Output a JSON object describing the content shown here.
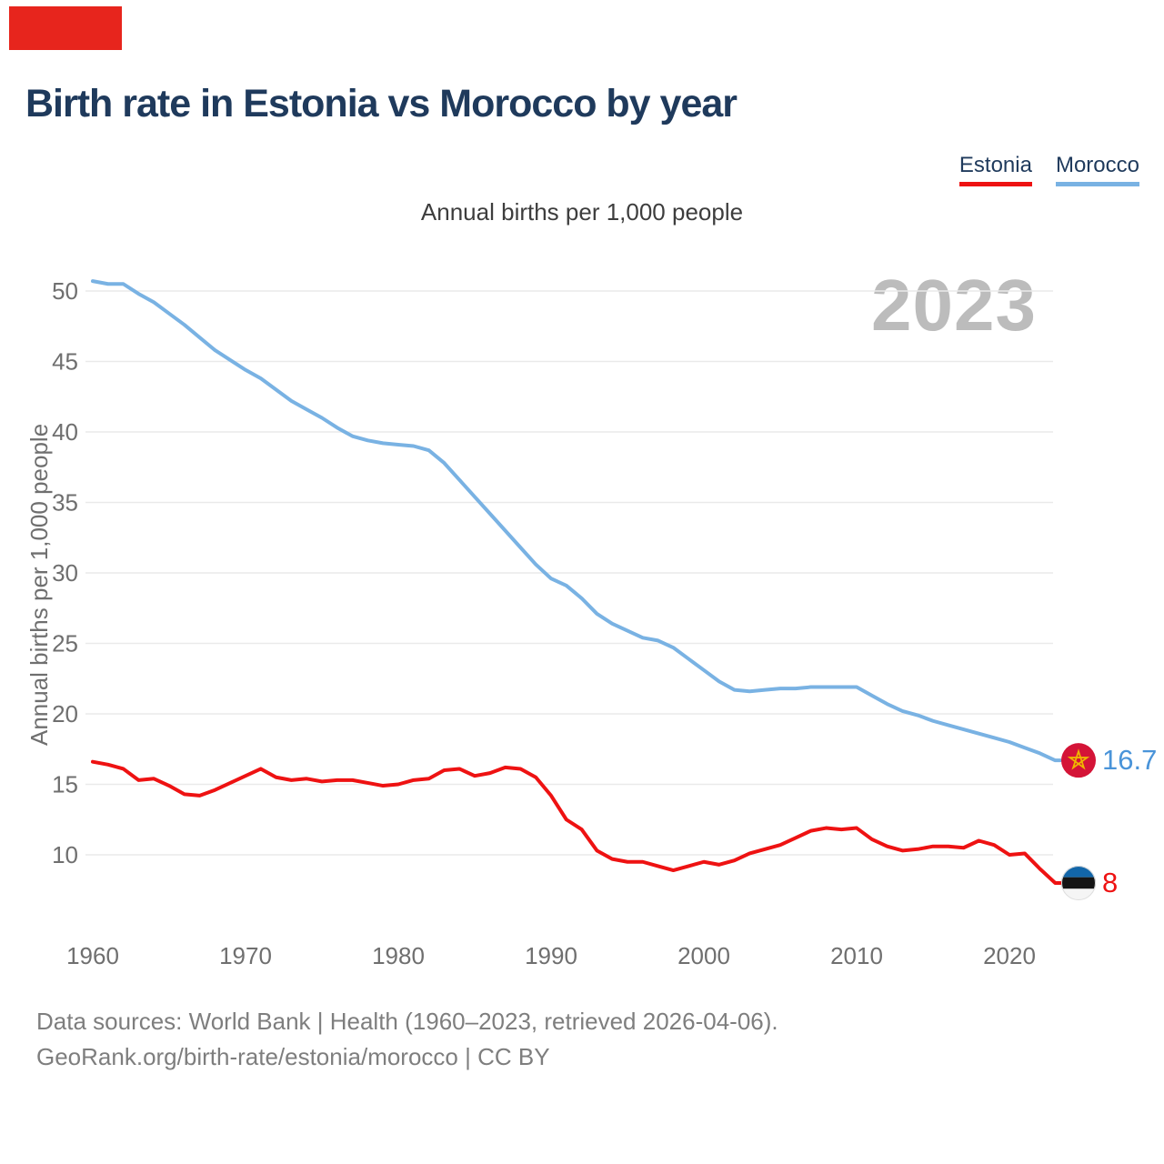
{
  "page": {
    "background_color": "#ffffff"
  },
  "decoration": {
    "red_marker_color": "#e7251d"
  },
  "header": {
    "title": "Birth rate in Estonia vs Morocco by year"
  },
  "legend": {
    "items": [
      {
        "label": "Estonia",
        "underline_color": "#ee1212"
      },
      {
        "label": "Morocco",
        "underline_color": "#79b2e3"
      }
    ]
  },
  "chart_data": {
    "type": "line",
    "title": "Birth rate in Estonia vs Morocco by year",
    "subtitle": "Annual births per 1,000 people",
    "ylabel": "Annual births per 1,000 people",
    "xlabel": "",
    "watermark": "2023",
    "grid": true,
    "legend_position": "top-right",
    "ylim": [
      6.5,
      52
    ],
    "yticks": [
      10,
      15,
      20,
      25,
      30,
      35,
      40,
      45,
      50
    ],
    "xticks": [
      1960,
      1970,
      1980,
      1990,
      2000,
      2010,
      2020
    ],
    "x": [
      1960,
      1961,
      1962,
      1963,
      1964,
      1965,
      1966,
      1967,
      1968,
      1969,
      1970,
      1971,
      1972,
      1973,
      1974,
      1975,
      1976,
      1977,
      1978,
      1979,
      1980,
      1981,
      1982,
      1983,
      1984,
      1985,
      1986,
      1987,
      1988,
      1989,
      1990,
      1991,
      1992,
      1993,
      1994,
      1995,
      1996,
      1997,
      1998,
      1999,
      2000,
      2001,
      2002,
      2003,
      2004,
      2005,
      2006,
      2007,
      2008,
      2009,
      2010,
      2011,
      2012,
      2013,
      2014,
      2015,
      2016,
      2017,
      2018,
      2019,
      2020,
      2021,
      2022,
      2023
    ],
    "series": [
      {
        "name": "Morocco",
        "color": "#79b2e3",
        "end_label": "16.7",
        "end_label_color": "#4a94d9",
        "flag": "morocco",
        "flag_colors": {
          "circle": "#d41437",
          "star": "#efb700"
        },
        "values": [
          50.7,
          50.5,
          50.5,
          49.8,
          49.2,
          48.4,
          47.6,
          46.7,
          45.8,
          45.1,
          44.4,
          43.8,
          43.0,
          42.2,
          41.6,
          41.0,
          40.3,
          39.7,
          39.4,
          39.2,
          39.1,
          39.0,
          38.7,
          37.8,
          36.6,
          35.4,
          34.2,
          33.0,
          31.8,
          30.6,
          29.6,
          29.1,
          28.2,
          27.1,
          26.4,
          25.9,
          25.4,
          25.2,
          24.7,
          23.9,
          23.1,
          22.3,
          21.7,
          21.6,
          21.7,
          21.8,
          21.8,
          21.9,
          21.9,
          21.9,
          21.9,
          21.3,
          20.7,
          20.2,
          19.9,
          19.5,
          19.2,
          18.9,
          18.6,
          18.3,
          18.0,
          17.6,
          17.2,
          16.7
        ]
      },
      {
        "name": "Estonia",
        "color": "#ee1212",
        "end_label": "8",
        "end_label_color": "#ee1212",
        "flag": "estonia",
        "flag_colors": {
          "blue": "#1266a9",
          "black": "#151515",
          "white": "#f5f5f5"
        },
        "values": [
          16.6,
          16.4,
          16.1,
          15.3,
          15.4,
          14.9,
          14.3,
          14.2,
          14.6,
          15.1,
          15.6,
          16.1,
          15.5,
          15.3,
          15.4,
          15.2,
          15.3,
          15.3,
          15.1,
          14.9,
          15.0,
          15.3,
          15.4,
          16.0,
          16.1,
          15.6,
          15.8,
          16.2,
          16.1,
          15.5,
          14.2,
          12.5,
          11.8,
          10.3,
          9.7,
          9.5,
          9.5,
          9.2,
          8.9,
          9.2,
          9.5,
          9.3,
          9.6,
          10.1,
          10.4,
          10.7,
          11.2,
          11.7,
          11.9,
          11.8,
          11.9,
          11.1,
          10.6,
          10.3,
          10.4,
          10.6,
          10.6,
          10.5,
          11.0,
          10.7,
          10.0,
          10.1,
          9.0,
          8.0
        ]
      }
    ],
    "grid_color": "#eaeaea",
    "tick_color": "#6f6f6f"
  },
  "footer": {
    "line1": "Data sources: World Bank | Health (1960–2023, retrieved 2026-04-06).",
    "line2": "GeoRank.org/birth-rate/estonia/morocco | CC BY"
  }
}
